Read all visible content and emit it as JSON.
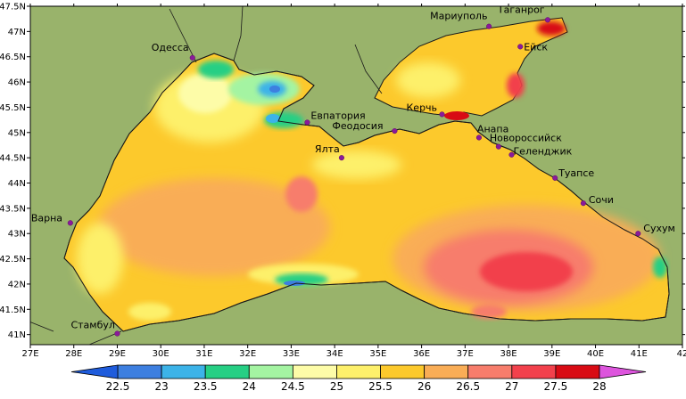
{
  "map": {
    "lon_range": [
      27,
      42
    ],
    "lat_range": [
      40.8,
      47.5
    ],
    "x_ticks": [
      "27E",
      "28E",
      "29E",
      "30E",
      "31E",
      "32E",
      "33E",
      "34E",
      "35E",
      "36E",
      "37E",
      "38E",
      "39E",
      "40E",
      "41E",
      "42"
    ],
    "y_ticks": [
      "47.5N",
      "47N",
      "46.5N",
      "46N",
      "45.5N",
      "45N",
      "44.5N",
      "44N",
      "43.5N",
      "43N",
      "42.5N",
      "42N",
      "41.5N",
      "41N"
    ],
    "y_tick_values": [
      47.5,
      47,
      46.5,
      46,
      45.5,
      45,
      44.5,
      44,
      43.5,
      43,
      42.5,
      42,
      41.5,
      41
    ],
    "land_color": "#99b36b",
    "cities": [
      {
        "name": "Одесса",
        "lon": 30.73,
        "lat": 46.48
      },
      {
        "name": "Мариуполь",
        "lon": 37.55,
        "lat": 47.1
      },
      {
        "name": "Таганрог",
        "lon": 38.9,
        "lat": 47.23
      },
      {
        "name": "Ейск",
        "lon": 38.27,
        "lat": 46.7
      },
      {
        "name": "Евпатория",
        "lon": 33.37,
        "lat": 45.2
      },
      {
        "name": "Феодосия",
        "lon": 35.38,
        "lat": 45.03
      },
      {
        "name": "Керчь",
        "lon": 36.47,
        "lat": 45.36
      },
      {
        "name": "Ялта",
        "lon": 34.16,
        "lat": 44.5
      },
      {
        "name": "Анапа",
        "lon": 37.32,
        "lat": 44.9
      },
      {
        "name": "Новороссийск",
        "lon": 37.77,
        "lat": 44.72
      },
      {
        "name": "Геленджик",
        "lon": 38.07,
        "lat": 44.56
      },
      {
        "name": "Туапсе",
        "lon": 39.07,
        "lat": 44.1
      },
      {
        "name": "Сочи",
        "lon": 39.72,
        "lat": 43.6
      },
      {
        "name": "Сухум",
        "lon": 40.98,
        "lat": 43.0
      },
      {
        "name": "Варна",
        "lon": 27.92,
        "lat": 43.21
      },
      {
        "name": "Стамбул",
        "lon": 29.0,
        "lat": 41.02
      }
    ]
  },
  "colorbar": {
    "labels": [
      "22.5",
      "23",
      "23.5",
      "24",
      "24.5",
      "25",
      "25.5",
      "26",
      "26.5",
      "27",
      "27.5",
      "28"
    ],
    "colors": [
      "#3d7fe0",
      "#3cb3e8",
      "#26cf84",
      "#a4f4a2",
      "#fdfca8",
      "#fdf06b",
      "#fcc92c",
      "#f9ad56",
      "#f77d6c",
      "#f2414c",
      "#d80b14"
    ],
    "low_arrow_color": "#1f5cdc",
    "high_arrow_color": "#dd55dd"
  }
}
